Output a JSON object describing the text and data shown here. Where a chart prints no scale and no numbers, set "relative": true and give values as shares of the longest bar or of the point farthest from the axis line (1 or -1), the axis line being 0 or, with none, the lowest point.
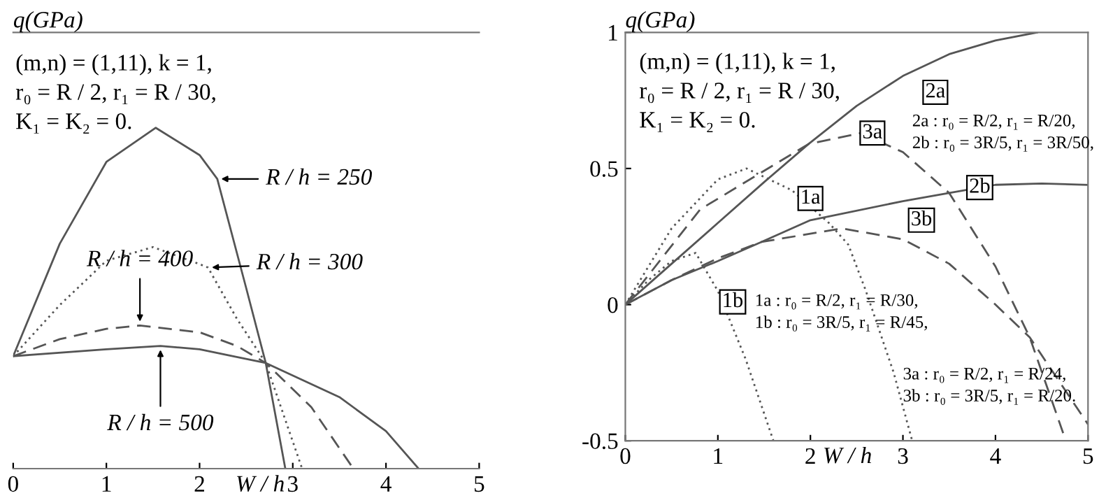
{
  "chart_data": [
    {
      "type": "line",
      "relative": true,
      "ylabel": "q(GPa)",
      "xlabel": "W / h",
      "xlim": [
        0,
        5
      ],
      "xticks": [
        0,
        1,
        2,
        3,
        4,
        5
      ],
      "tick_labels": "x",
      "series": [
        {
          "color": "#555555",
          "line_style": "solid",
          "x": [
            0,
            0.5,
            1,
            1.53,
            2,
            2.19,
            2.5,
            2.71,
            2.92
          ],
          "values": [
            0.33,
            0.66,
            0.9,
            1.0,
            0.92,
            0.85,
            0.53,
            0.31,
            0
          ]
        },
        {
          "color": "#555555",
          "line_style": "dotted",
          "x": [
            0,
            0.5,
            1,
            1.5,
            2,
            2.09,
            2.4,
            2.71,
            3.1
          ],
          "values": [
            0.33,
            0.48,
            0.61,
            0.65,
            0.6,
            0.59,
            0.44,
            0.31,
            0
          ]
        },
        {
          "color": "#555555",
          "line_style": "dashed",
          "x": [
            0,
            0.5,
            1,
            1.36,
            2,
            2.4,
            2.71,
            3.2,
            3.65
          ],
          "values": [
            0.33,
            0.38,
            0.41,
            0.42,
            0.4,
            0.36,
            0.31,
            0.18,
            0
          ]
        },
        {
          "color": "#555555",
          "line_style": "solid",
          "x": [
            0,
            1,
            1.58,
            2,
            2.71,
            3.5,
            4,
            4.35
          ],
          "values": [
            0.33,
            0.35,
            0.36,
            0.35,
            0.31,
            0.21,
            0.11,
            0
          ]
        }
      ],
      "annotations": [
        "(m,n) = (1,11), k = 1,\nr₀ = R / 2, r₁ = R / 30,\nK₁ = K₂ = 0.",
        {
          "text": "R / h = 250",
          "x": 2.19,
          "y": 0.85
        },
        {
          "text": "R / h = 300",
          "x": 2.09,
          "y": 0.59
        },
        {
          "text": "R / h = 400",
          "x": 1.36,
          "y": 0.42
        },
        {
          "text": "R / h = 500",
          "x": 1.58,
          "y": 0.36
        }
      ]
    },
    {
      "type": "line",
      "ylabel": "q(GPa)",
      "xlabel": "W / h",
      "xlim": [
        0,
        5
      ],
      "xticks": [
        0,
        1,
        2,
        3,
        4,
        5
      ],
      "ylim": [
        -0.5,
        1
      ],
      "yticks": [
        {
          "value": -0.5,
          "label": "-0.5"
        },
        0,
        0.5,
        1
      ],
      "series": [
        {
          "color": "#555555",
          "line_style": "dotted",
          "x": [
            0,
            0.5,
            1,
            1.31,
            1.8,
            2.2,
            2.41,
            2.6,
            2.9,
            3.1
          ],
          "values": [
            0,
            0.28,
            0.46,
            0.5,
            0.42,
            0.3,
            0.22,
            0.05,
            -0.25,
            -0.5
          ]
        },
        {
          "color": "#555555",
          "line_style": "dotted",
          "x": [
            0,
            0.25,
            0.5,
            0.76,
            1.0,
            1.3,
            1.6
          ],
          "values": [
            0,
            0.09,
            0.16,
            0.19,
            0.05,
            -0.2,
            -0.5
          ]
        },
        {
          "color": "#555555",
          "line_style": "solid",
          "x": [
            0,
            0.5,
            1,
            1.5,
            1.98,
            2.5,
            3,
            3.5,
            4,
            4.45
          ],
          "values": [
            0,
            0.15,
            0.3,
            0.45,
            0.59,
            0.73,
            0.84,
            0.92,
            0.97,
            1.0
          ]
        },
        {
          "color": "#555555",
          "line_style": "solid",
          "x": [
            0,
            0.5,
            1,
            1.47,
            2,
            3,
            3.5,
            4,
            4.5,
            5
          ],
          "values": [
            0,
            0.09,
            0.16,
            0.23,
            0.31,
            0.38,
            0.41,
            0.44,
            0.445,
            0.44
          ]
        },
        {
          "color": "#555555",
          "line_style": "dashed",
          "x": [
            0,
            0.81,
            1.98,
            2.54,
            3,
            3.5,
            4,
            4.37,
            4.75
          ],
          "values": [
            0,
            0.35,
            0.59,
            0.63,
            0.56,
            0.41,
            0.14,
            -0.12,
            -0.49
          ]
        },
        {
          "color": "#555555",
          "line_style": "dashed",
          "x": [
            0,
            0.5,
            1,
            1.47,
            2.34,
            3,
            3.5,
            4,
            4.37,
            5
          ],
          "values": [
            0,
            0.09,
            0.17,
            0.23,
            0.28,
            0.24,
            0.15,
            0.0,
            -0.12,
            -0.44
          ]
        }
      ],
      "annotations": [
        "(m,n) = (1,11), k = 1,\nr₀ = R / 2, r₁ = R / 30,\nK₁ = K₂ = 0.",
        "2a : r₀ = R/2, r₁ = R/20,\n2b : r₀ = 3R/5, r₁ = 3R/50,",
        "1a : r₀ = R/2, r₁ = R/30,\n1b : r₀ = 3R/5, r₁ = R/45,",
        "3a : r₀ = R/2, r₁ = R/24,\n3b : r₀ = 3R/5, r₁ = R/20.",
        {
          "text": "1a",
          "x": 2.0,
          "y": 0.39
        },
        {
          "text": "1b",
          "x": 1.16,
          "y": 0.01
        },
        {
          "text": "2a",
          "x": 3.35,
          "y": 0.78
        },
        {
          "text": "2b",
          "x": 3.83,
          "y": 0.43
        },
        {
          "text": "3a",
          "x": 2.67,
          "y": 0.63
        },
        {
          "text": "3b",
          "x": 3.2,
          "y": 0.31
        }
      ]
    }
  ]
}
